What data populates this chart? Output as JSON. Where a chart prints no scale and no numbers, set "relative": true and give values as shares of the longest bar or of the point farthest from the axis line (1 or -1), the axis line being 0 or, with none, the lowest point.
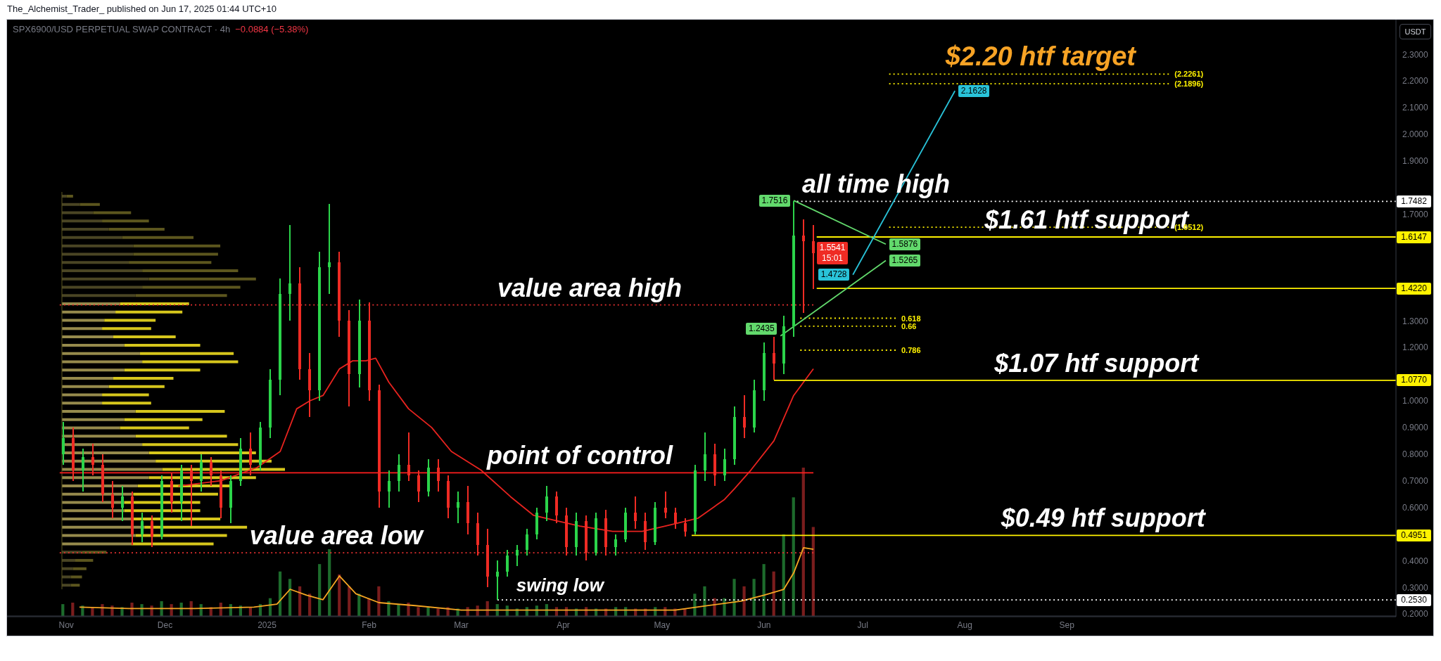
{
  "chart_data": [
    {
      "type": "candlestick",
      "title": "SPX6900/USD PERPETUAL SWAP CONTRACT · 4h",
      "subtitle": "−0.0884 (−5.38%)",
      "ylabel": "USDT",
      "x": [
        "2024-10-31",
        "2024-11-03",
        "2024-11-06",
        "2024-11-09",
        "2024-11-12",
        "2024-11-15",
        "2024-11-18",
        "2024-11-21",
        "2024-11-24",
        "2024-11-27",
        "2024-11-30",
        "2024-12-03",
        "2024-12-06",
        "2024-12-09",
        "2024-12-12",
        "2024-12-15",
        "2024-12-18",
        "2024-12-21",
        "2024-12-24",
        "2024-12-27",
        "2024-12-30",
        "2025-01-02",
        "2025-01-05",
        "2025-01-08",
        "2025-01-11",
        "2025-01-14",
        "2025-01-17",
        "2025-01-20",
        "2025-01-23",
        "2025-01-26",
        "2025-01-29",
        "2025-02-01",
        "2025-02-04",
        "2025-02-07",
        "2025-02-10",
        "2025-02-13",
        "2025-02-16",
        "2025-02-19",
        "2025-02-22",
        "2025-02-25",
        "2025-02-28",
        "2025-03-03",
        "2025-03-06",
        "2025-03-09",
        "2025-03-12",
        "2025-03-15",
        "2025-03-18",
        "2025-03-21",
        "2025-03-24",
        "2025-03-27",
        "2025-03-30",
        "2025-04-02",
        "2025-04-05",
        "2025-04-08",
        "2025-04-11",
        "2025-04-14",
        "2025-04-17",
        "2025-04-20",
        "2025-04-23",
        "2025-04-26",
        "2025-04-29",
        "2025-05-02",
        "2025-05-05",
        "2025-05-08",
        "2025-05-11",
        "2025-05-14",
        "2025-05-17",
        "2025-05-20",
        "2025-05-23",
        "2025-05-26",
        "2025-05-29",
        "2025-06-01",
        "2025-06-04",
        "2025-06-07",
        "2025-06-10",
        "2025-06-13",
        "2025-06-16"
      ],
      "ohlc": [
        [
          0.8,
          0.92,
          0.76,
          0.86
        ],
        [
          0.86,
          0.9,
          0.7,
          0.74
        ],
        [
          0.74,
          0.82,
          0.66,
          0.79
        ],
        [
          0.79,
          0.84,
          0.72,
          0.76
        ],
        [
          0.76,
          0.8,
          0.62,
          0.65
        ],
        [
          0.65,
          0.7,
          0.56,
          0.6
        ],
        [
          0.6,
          0.68,
          0.55,
          0.64
        ],
        [
          0.64,
          0.66,
          0.46,
          0.5
        ],
        [
          0.5,
          0.58,
          0.47,
          0.55
        ],
        [
          0.55,
          0.57,
          0.45,
          0.49
        ],
        [
          0.49,
          0.72,
          0.48,
          0.7
        ],
        [
          0.7,
          0.73,
          0.58,
          0.62
        ],
        [
          0.62,
          0.76,
          0.55,
          0.74
        ],
        [
          0.74,
          0.76,
          0.53,
          0.7
        ],
        [
          0.7,
          0.8,
          0.66,
          0.77
        ],
        [
          0.77,
          0.79,
          0.68,
          0.72
        ],
        [
          0.72,
          0.74,
          0.56,
          0.6
        ],
        [
          0.6,
          0.72,
          0.54,
          0.7
        ],
        [
          0.7,
          0.86,
          0.68,
          0.82
        ],
        [
          0.82,
          0.88,
          0.72,
          0.76
        ],
        [
          0.76,
          0.92,
          0.74,
          0.9
        ],
        [
          0.9,
          1.12,
          0.86,
          1.08
        ],
        [
          1.08,
          1.46,
          1.02,
          1.4
        ],
        [
          1.4,
          1.66,
          1.3,
          1.44
        ],
        [
          1.44,
          1.5,
          1.08,
          1.12
        ],
        [
          1.12,
          1.18,
          0.94,
          1.04
        ],
        [
          1.04,
          1.56,
          1.0,
          1.5
        ],
        [
          1.5,
          1.74,
          1.4,
          1.52
        ],
        [
          1.52,
          1.56,
          1.24,
          1.3
        ],
        [
          1.3,
          1.34,
          0.98,
          1.1
        ],
        [
          1.1,
          1.38,
          1.05,
          1.3
        ],
        [
          1.3,
          1.37,
          1.0,
          1.04
        ],
        [
          1.04,
          1.06,
          0.6,
          0.66
        ],
        [
          0.66,
          0.74,
          0.6,
          0.7
        ],
        [
          0.7,
          0.8,
          0.66,
          0.76
        ],
        [
          0.76,
          0.88,
          0.7,
          0.72
        ],
        [
          0.72,
          0.74,
          0.62,
          0.66
        ],
        [
          0.66,
          0.78,
          0.64,
          0.75
        ],
        [
          0.75,
          0.78,
          0.66,
          0.7
        ],
        [
          0.7,
          0.72,
          0.56,
          0.6
        ],
        [
          0.6,
          0.66,
          0.54,
          0.62
        ],
        [
          0.62,
          0.68,
          0.5,
          0.54
        ],
        [
          0.54,
          0.58,
          0.42,
          0.46
        ],
        [
          0.46,
          0.52,
          0.3,
          0.34
        ],
        [
          0.34,
          0.4,
          0.253,
          0.36
        ],
        [
          0.36,
          0.44,
          0.34,
          0.42
        ],
        [
          0.42,
          0.46,
          0.38,
          0.44
        ],
        [
          0.44,
          0.52,
          0.42,
          0.5
        ],
        [
          0.5,
          0.6,
          0.48,
          0.58
        ],
        [
          0.58,
          0.68,
          0.55,
          0.64
        ],
        [
          0.64,
          0.66,
          0.54,
          0.57
        ],
        [
          0.57,
          0.6,
          0.42,
          0.45
        ],
        [
          0.45,
          0.58,
          0.42,
          0.55
        ],
        [
          0.55,
          0.57,
          0.4,
          0.43
        ],
        [
          0.43,
          0.58,
          0.42,
          0.56
        ],
        [
          0.56,
          0.59,
          0.42,
          0.45
        ],
        [
          0.45,
          0.5,
          0.42,
          0.48
        ],
        [
          0.48,
          0.6,
          0.47,
          0.58
        ],
        [
          0.58,
          0.64,
          0.52,
          0.55
        ],
        [
          0.55,
          0.58,
          0.44,
          0.47
        ],
        [
          0.47,
          0.62,
          0.46,
          0.6
        ],
        [
          0.6,
          0.66,
          0.56,
          0.58
        ],
        [
          0.58,
          0.6,
          0.52,
          0.54
        ],
        [
          0.54,
          0.56,
          0.49,
          0.51
        ],
        [
          0.51,
          0.76,
          0.5,
          0.74
        ],
        [
          0.74,
          0.88,
          0.7,
          0.8
        ],
        [
          0.8,
          0.84,
          0.68,
          0.72
        ],
        [
          0.72,
          0.82,
          0.7,
          0.78
        ],
        [
          0.78,
          0.98,
          0.76,
          0.94
        ],
        [
          0.94,
          1.02,
          0.86,
          0.9
        ],
        [
          0.9,
          1.08,
          0.88,
          1.04
        ],
        [
          1.04,
          1.22,
          1.0,
          1.18
        ],
        [
          1.18,
          1.24,
          1.08,
          1.14
        ],
        [
          1.14,
          1.32,
          1.1,
          1.28
        ],
        [
          1.28,
          1.7482,
          1.24,
          1.62
        ],
        [
          1.62,
          1.68,
          1.33,
          1.6
        ],
        [
          1.6,
          1.66,
          1.42,
          1.5541
        ]
      ],
      "colors": [
        "#2bd44a",
        "#ef2b24",
        "#2bd44a",
        "#ef2b24",
        "#ef2b24",
        "#ef2b24",
        "#2bd44a",
        "#ef2b24",
        "#2bd44a",
        "#ef2b24",
        "#2bd44a",
        "#ef2b24",
        "#2bd44a",
        "#ef2b24",
        "#2bd44a",
        "#ef2b24",
        "#ef2b24",
        "#2bd44a",
        "#2bd44a",
        "#ef2b24",
        "#2bd44a",
        "#2bd44a",
        "#2bd44a",
        "#2bd44a",
        "#ef2b24",
        "#ef2b24",
        "#2bd44a",
        "#2bd44a",
        "#ef2b24",
        "#ef2b24",
        "#2bd44a",
        "#ef2b24",
        "#ef2b24",
        "#2bd44a",
        "#2bd44a",
        "#ef2b24",
        "#ef2b24",
        "#2bd44a",
        "#ef2b24",
        "#ef2b24",
        "#2bd44a",
        "#ef2b24",
        "#ef2b24",
        "#ef2b24",
        "#2bd44a",
        "#2bd44a",
        "#2bd44a",
        "#2bd44a",
        "#2bd44a",
        "#2bd44a",
        "#ef2b24",
        "#ef2b24",
        "#2bd44a",
        "#ef2b24",
        "#2bd44a",
        "#ef2b24",
        "#2bd44a",
        "#2bd44a",
        "#ef2b24",
        "#ef2b24",
        "#2bd44a",
        "#ef2b24",
        "#ef2b24",
        "#ef2b24",
        "#2bd44a",
        "#2bd44a",
        "#ef2b24",
        "#2bd44a",
        "#2bd44a",
        "#ef2b24",
        "#2bd44a",
        "#2bd44a",
        "#ef2b24",
        "#2bd44a",
        "#2bd44a",
        "#ef2b24",
        "#ef2b24"
      ],
      "series": [
        {
          "type": "line",
          "color": "#e8231f",
          "x": [
            "2024-12-05",
            "2024-12-18",
            "2024-12-29",
            "2025-01-05",
            "2025-01-10",
            "2025-01-14",
            "2025-01-18",
            "2025-01-23",
            "2025-01-27",
            "2025-01-31",
            "2025-02-03",
            "2025-02-07",
            "2025-02-13",
            "2025-02-20",
            "2025-02-26",
            "2025-03-07",
            "2025-03-16",
            "2025-03-23",
            "2025-03-30",
            "2025-04-06",
            "2025-04-16",
            "2025-04-25",
            "2025-05-02",
            "2025-05-12",
            "2025-05-20",
            "2025-05-23",
            "2025-05-28",
            "2025-06-04",
            "2025-06-10",
            "2025-06-16"
          ],
          "values": [
            0.68,
            0.7,
            0.75,
            0.81,
            0.97,
            1.0,
            1.02,
            1.12,
            1.15,
            1.15,
            1.16,
            1.07,
            0.97,
            0.9,
            0.81,
            0.74,
            0.64,
            0.57,
            0.55,
            0.53,
            0.51,
            0.51,
            0.53,
            0.56,
            0.63,
            0.67,
            0.74,
            0.85,
            1.02,
            1.12
          ]
        },
        {
          "type": "line",
          "color": "#ffffff",
          "line_style": "dotted",
          "x": [
            "2025-06-11",
            "2025-12-10"
          ],
          "values": [
            1.7482,
            1.7482
          ],
          "value_labels": [
            null,
            "1.7482"
          ]
        },
        {
          "type": "line",
          "color": "#fff200",
          "x": [
            "2025-06-17",
            "2025-12-10"
          ],
          "values": [
            1.6147,
            1.6147
          ],
          "value_labels": [
            null,
            "1.6147"
          ]
        },
        {
          "type": "line",
          "color": "#fff200",
          "x": [
            "2025-06-17",
            "2025-12-10"
          ],
          "values": [
            1.422,
            1.422
          ],
          "value_labels": [
            null,
            "1.4220"
          ]
        },
        {
          "type": "line",
          "color": "#fff200",
          "x": [
            "2025-06-04",
            "2025-12-10"
          ],
          "values": [
            1.077,
            1.077
          ],
          "value_labels": [
            null,
            "1.0770"
          ]
        },
        {
          "type": "line",
          "color": "#fff200",
          "x": [
            "2025-05-10",
            "2025-12-10"
          ],
          "values": [
            0.4951,
            0.4951
          ],
          "value_labels": [
            null,
            "0.4951"
          ]
        },
        {
          "type": "line",
          "color": "#ffffff",
          "line_style": "dotted",
          "x": [
            "2025-03-12",
            "2025-12-10"
          ],
          "values": [
            0.253,
            0.253
          ],
          "value_labels": [
            null,
            "0.2530"
          ]
        },
        {
          "type": "line",
          "color": "#ff1e1e",
          "x": [
            "2024-10-30",
            "2025-06-16"
          ],
          "values": [
            0.73,
            0.73
          ]
        },
        {
          "type": "line",
          "color": "#e53030",
          "line_style": "dotted",
          "x": [
            "2024-10-30",
            "2025-06-16"
          ],
          "values": [
            1.36,
            1.36
          ]
        },
        {
          "type": "line",
          "color": "#e53030",
          "line_style": "dotted",
          "x": [
            "2024-10-30",
            "2025-06-16"
          ],
          "values": [
            0.43,
            0.43
          ]
        },
        {
          "type": "line",
          "name": "0.618",
          "color": "#fff200",
          "line_style": "dotted",
          "x": [
            "2025-06-12",
            "2025-07-11"
          ],
          "values": [
            1.31,
            1.31
          ]
        },
        {
          "type": "line",
          "name": "0.66",
          "color": "#fff200",
          "line_style": "dotted",
          "x": [
            "2025-06-12",
            "2025-07-11"
          ],
          "values": [
            1.28,
            1.28
          ]
        },
        {
          "type": "line",
          "name": "0.786",
          "color": "#fff200",
          "line_style": "dotted",
          "x": [
            "2025-06-12",
            "2025-07-11"
          ],
          "values": [
            1.19,
            1.19
          ]
        },
        {
          "type": "line",
          "color": "#fff200",
          "line_style": "dotted",
          "x": [
            "2025-07-09",
            "2025-10-02"
          ],
          "values": [
            2.2261,
            2.2261
          ],
          "value_labels": [
            null,
            "(2.2261)"
          ]
        },
        {
          "type": "line",
          "color": "#fff200",
          "line_style": "dotted",
          "x": [
            "2025-07-09",
            "2025-10-02"
          ],
          "values": [
            2.1896,
            2.1896
          ],
          "value_labels": [
            null,
            "(2.1896)"
          ]
        },
        {
          "type": "line",
          "color": "#fff200",
          "line_style": "dotted",
          "x": [
            "2025-07-09",
            "2025-10-02"
          ],
          "values": [
            1.6512,
            1.6512
          ],
          "value_labels": [
            null,
            "(1.6512)"
          ]
        },
        {
          "type": "line",
          "color": "#62d96c",
          "x": [
            "2025-06-10",
            "2025-07-08"
          ],
          "values": [
            1.7516,
            1.5876
          ],
          "value_labels": [
            "1.7516",
            "1.5876"
          ]
        },
        {
          "type": "line",
          "color": "#62d96c",
          "x": [
            "2025-06-06",
            "2025-07-08"
          ],
          "values": [
            1.2435,
            1.5265
          ],
          "value_labels": [
            "1.2435",
            "1.5265"
          ]
        },
        {
          "type": "line",
          "color": "#29c3d9",
          "x": [
            "2025-06-28",
            "2025-07-29"
          ],
          "values": [
            1.4728,
            2.1628
          ],
          "value_labels": [
            "1.4728",
            "2.1628"
          ]
        }
      ],
      "annotations": [
        "The_Alchemist_Trader_ published on Jun 17, 2025 01:44 UTC+10",
        {
          "text": "$2.20 htf target",
          "x": "2025-08-24",
          "y": 2.2261
        },
        {
          "text": "all time high",
          "x": "2025-07-05",
          "y": 1.7482
        },
        {
          "text": "$1.61 htf support",
          "x": "2025-09-07",
          "y": 1.6147
        },
        {
          "text": "value area high",
          "x": "2025-04-09",
          "y": 1.36
        },
        {
          "text": "$1.07 htf support",
          "x": "2025-09-10",
          "y": 1.077
        },
        {
          "text": "point of control",
          "x": "2025-04-06",
          "y": 0.73
        },
        {
          "text": "$0.49 htf support",
          "x": "2025-09-12",
          "y": 0.4951
        },
        {
          "text": "value area low",
          "x": "2025-01-22",
          "y": 0.43
        },
        {
          "text": "swing low",
          "x": "2025-03-31",
          "y": 0.253
        },
        {
          "text": "1.5541\n15:01",
          "x": "2025-06-16",
          "y": 1.5541
        }
      ],
      "xlim": [
        "2024-10-14",
        "2025-12-10"
      ],
      "xticks": [
        {
          "value": "2024-11-01",
          "label": "Nov"
        },
        {
          "value": "2024-12-01",
          "label": "Dec"
        },
        {
          "value": "2025-01-01",
          "label": "2025"
        },
        {
          "value": "2025-02-01",
          "label": "Feb"
        },
        {
          "value": "2025-03-01",
          "label": "Mar"
        },
        {
          "value": "2025-04-01",
          "label": "Apr"
        },
        {
          "value": "2025-05-01",
          "label": "May"
        },
        {
          "value": "2025-06-01",
          "label": "Jun"
        },
        {
          "value": "2025-07-01",
          "label": "Jul"
        },
        {
          "value": "2025-08-01",
          "label": "Aug"
        },
        {
          "value": "2025-09-01",
          "label": "Sep"
        }
      ],
      "ylim": [
        0.19,
        2.43
      ],
      "yticks": [
        {
          "value": 0.2,
          "label": "0.2000"
        },
        {
          "value": 0.3,
          "label": "0.3000"
        },
        {
          "value": 0.4,
          "label": "0.4000"
        },
        {
          "value": 0.6,
          "label": "0.6000"
        },
        {
          "value": 0.7,
          "label": "0.7000"
        },
        {
          "value": 0.8,
          "label": "0.8000"
        },
        {
          "value": 0.9,
          "label": "0.9000"
        },
        {
          "value": 1.0,
          "label": "1.0000"
        },
        {
          "value": 1.2,
          "label": "1.2000"
        },
        {
          "value": 1.3,
          "label": "1.3000"
        },
        {
          "value": 1.7,
          "label": "1.7000"
        },
        {
          "value": 1.9,
          "label": "1.9000"
        },
        {
          "value": 2.0,
          "label": "2.0000"
        },
        {
          "value": 2.1,
          "label": "2.1000"
        },
        {
          "value": 2.2,
          "label": "2.2000"
        },
        {
          "value": 2.3,
          "label": "2.3000"
        }
      ]
    },
    {
      "type": "bar",
      "relative": true,
      "tick_labels": false,
      "x": [
        "2024-10-31",
        "2024-11-03",
        "2024-11-06",
        "2024-11-09",
        "2024-11-12",
        "2024-11-15",
        "2024-11-18",
        "2024-11-21",
        "2024-11-24",
        "2024-11-27",
        "2024-11-30",
        "2024-12-03",
        "2024-12-06",
        "2024-12-09",
        "2024-12-12",
        "2024-12-15",
        "2024-12-18",
        "2024-12-21",
        "2024-12-24",
        "2024-12-27",
        "2024-12-30",
        "2025-01-02",
        "2025-01-05",
        "2025-01-08",
        "2025-01-11",
        "2025-01-14",
        "2025-01-17",
        "2025-01-20",
        "2025-01-23",
        "2025-01-26",
        "2025-01-29",
        "2025-02-01",
        "2025-02-04",
        "2025-02-07",
        "2025-02-10",
        "2025-02-13",
        "2025-02-16",
        "2025-02-19",
        "2025-02-22",
        "2025-02-25",
        "2025-02-28",
        "2025-03-03",
        "2025-03-06",
        "2025-03-09",
        "2025-03-12",
        "2025-03-15",
        "2025-03-18",
        "2025-03-21",
        "2025-03-24",
        "2025-03-27",
        "2025-03-30",
        "2025-04-02",
        "2025-04-05",
        "2025-04-08",
        "2025-04-11",
        "2025-04-14",
        "2025-04-17",
        "2025-04-20",
        "2025-04-23",
        "2025-04-26",
        "2025-04-29",
        "2025-05-02",
        "2025-05-05",
        "2025-05-08",
        "2025-05-11",
        "2025-05-14",
        "2025-05-17",
        "2025-05-20",
        "2025-05-23",
        "2025-05-26",
        "2025-05-29",
        "2025-06-01",
        "2025-06-04",
        "2025-06-07",
        "2025-06-10",
        "2025-06-13",
        "2025-06-16"
      ],
      "xlim": [
        "2024-10-14",
        "2025-12-10"
      ],
      "series": [
        {
          "type": "bar",
          "values": [
            0.08,
            0.09,
            0.07,
            0.06,
            0.08,
            0.07,
            0.06,
            0.09,
            0.08,
            0.07,
            0.1,
            0.08,
            0.09,
            0.1,
            0.08,
            0.06,
            0.09,
            0.08,
            0.07,
            0.06,
            0.08,
            0.12,
            0.3,
            0.25,
            0.2,
            0.15,
            0.35,
            0.45,
            0.28,
            0.2,
            0.15,
            0.12,
            0.2,
            0.1,
            0.08,
            0.09,
            0.06,
            0.06,
            0.05,
            0.06,
            0.05,
            0.06,
            0.07,
            0.1,
            0.08,
            0.07,
            0.05,
            0.06,
            0.07,
            0.08,
            0.06,
            0.06,
            0.05,
            0.06,
            0.05,
            0.05,
            0.06,
            0.06,
            0.05,
            0.05,
            0.06,
            0.06,
            0.05,
            0.05,
            0.15,
            0.2,
            0.12,
            0.12,
            0.25,
            0.2,
            0.25,
            0.35,
            0.3,
            0.55,
            0.8,
            1.0,
            0.6
          ],
          "colors": [
            "#1d6b2c",
            "#7a1d1d",
            "#1d6b2c",
            "#7a1d1d",
            "#7a1d1d",
            "#7a1d1d",
            "#1d6b2c",
            "#7a1d1d",
            "#1d6b2c",
            "#7a1d1d",
            "#1d6b2c",
            "#7a1d1d",
            "#1d6b2c",
            "#7a1d1d",
            "#1d6b2c",
            "#7a1d1d",
            "#7a1d1d",
            "#1d6b2c",
            "#1d6b2c",
            "#7a1d1d",
            "#1d6b2c",
            "#1d6b2c",
            "#1d6b2c",
            "#1d6b2c",
            "#7a1d1d",
            "#7a1d1d",
            "#1d6b2c",
            "#1d6b2c",
            "#7a1d1d",
            "#7a1d1d",
            "#1d6b2c",
            "#7a1d1d",
            "#7a1d1d",
            "#1d6b2c",
            "#1d6b2c",
            "#7a1d1d",
            "#7a1d1d",
            "#1d6b2c",
            "#7a1d1d",
            "#7a1d1d",
            "#1d6b2c",
            "#7a1d1d",
            "#7a1d1d",
            "#7a1d1d",
            "#1d6b2c",
            "#1d6b2c",
            "#1d6b2c",
            "#1d6b2c",
            "#1d6b2c",
            "#1d6b2c",
            "#7a1d1d",
            "#7a1d1d",
            "#1d6b2c",
            "#7a1d1d",
            "#1d6b2c",
            "#7a1d1d",
            "#1d6b2c",
            "#1d6b2c",
            "#7a1d1d",
            "#7a1d1d",
            "#1d6b2c",
            "#7a1d1d",
            "#7a1d1d",
            "#7a1d1d",
            "#1d6b2c",
            "#1d6b2c",
            "#7a1d1d",
            "#1d6b2c",
            "#1d6b2c",
            "#7a1d1d",
            "#1d6b2c",
            "#1d6b2c",
            "#7a1d1d",
            "#1d6b2c",
            "#1d6b2c",
            "#7a1d1d",
            "#7a1d1d"
          ]
        },
        {
          "type": "line",
          "color": "#f5a623",
          "x": [
            "2024-11-05",
            "2024-11-20",
            "2024-12-10",
            "2024-12-28",
            "2025-01-04",
            "2025-01-08",
            "2025-01-13",
            "2025-01-18",
            "2025-01-23",
            "2025-01-28",
            "2025-02-04",
            "2025-02-15",
            "2025-03-01",
            "2025-03-15",
            "2025-04-01",
            "2025-04-20",
            "2025-05-05",
            "2025-05-15",
            "2025-05-25",
            "2025-06-01",
            "2025-06-07",
            "2025-06-10",
            "2025-06-13",
            "2025-06-16"
          ],
          "values": [
            0.06,
            0.05,
            0.05,
            0.06,
            0.08,
            0.18,
            0.14,
            0.11,
            0.27,
            0.15,
            0.09,
            0.07,
            0.04,
            0.04,
            0.04,
            0.04,
            0.04,
            0.07,
            0.1,
            0.14,
            0.18,
            0.29,
            0.46,
            0.45
          ]
        }
      ]
    },
    {
      "type": "bar",
      "orientation": "horizontal",
      "stacked": true,
      "relative": true,
      "tick_labels": false,
      "categories": [
        null,
        null,
        null,
        null,
        null,
        null,
        null,
        null,
        null,
        null,
        null,
        null,
        null,
        null,
        null,
        null,
        null,
        null,
        null,
        null,
        null,
        null,
        null,
        null,
        null,
        null,
        null,
        null,
        null,
        null,
        null,
        null,
        null,
        null,
        null,
        null,
        null,
        null,
        null,
        null,
        null,
        null,
        null,
        null,
        null,
        null,
        null,
        null
      ],
      "series": [
        {
          "values": [
            0.02,
            0.08,
            0.14,
            0.18,
            0.21,
            0.27,
            0.32,
            0.32,
            0.3,
            0.36,
            0.39,
            0.36,
            0.33,
            0.26,
            0.24,
            0.19,
            0.18,
            0.23,
            0.28,
            0.35,
            0.36,
            0.28,
            0.23,
            0.21,
            0.18,
            0.18,
            0.33,
            0.28,
            0.26,
            0.33,
            0.36,
            0.39,
            0.42,
            0.45,
            0.39,
            0.34,
            0.32,
            0.28,
            0.28,
            0.32,
            0.37,
            0.33,
            0.31,
            0.09,
            0.06,
            0.05,
            0.04,
            0.04
          ],
          "colors": [
            "#4a4524",
            "#4a4524",
            "#4a4524",
            "#4a4524",
            "#4a4524",
            "#4a4524",
            "#4a4524",
            "#4a4524",
            "#4a4524",
            "#4a4524",
            "#4a4524",
            "#4a4524",
            "#4a4524",
            "#968a4c",
            "#968a4c",
            "#968a4c",
            "#968a4c",
            "#968a4c",
            "#968a4c",
            "#968a4c",
            "#968a4c",
            "#968a4c",
            "#968a4c",
            "#968a4c",
            "#968a4c",
            "#968a4c",
            "#968a4c",
            "#968a4c",
            "#968a4c",
            "#968a4c",
            "#968a4c",
            "#968a4c",
            "#968a4c",
            "#968a4c",
            "#968a4c",
            "#968a4c",
            "#968a4c",
            "#968a4c",
            "#968a4c",
            "#968a4c",
            "#968a4c",
            "#968a4c",
            "#968a4c",
            "#4a4524",
            "#4a4524",
            "#4a4524",
            "#4a4524",
            "#4a4524"
          ]
        },
        {
          "values": [
            0.03,
            0.09,
            0.17,
            0.21,
            0.25,
            0.32,
            0.39,
            0.38,
            0.37,
            0.43,
            0.48,
            0.44,
            0.41,
            0.31,
            0.3,
            0.23,
            0.22,
            0.28,
            0.34,
            0.42,
            0.43,
            0.34,
            0.27,
            0.25,
            0.21,
            0.22,
            0.4,
            0.35,
            0.31,
            0.41,
            0.43,
            0.48,
            0.52,
            0.55,
            0.48,
            0.42,
            0.38,
            0.34,
            0.34,
            0.39,
            0.46,
            0.41,
            0.37,
            0.11,
            0.08,
            0.06,
            0.05,
            0.04
          ],
          "colors": [
            "#5c561e",
            "#5c561e",
            "#5c561e",
            "#5c561e",
            "#5c561e",
            "#5c561e",
            "#5c561e",
            "#5c561e",
            "#5c561e",
            "#5c561e",
            "#5c561e",
            "#5c561e",
            "#5c561e",
            "#d6c61c",
            "#d6c61c",
            "#d6c61c",
            "#d6c61c",
            "#d6c61c",
            "#d6c61c",
            "#d6c61c",
            "#d6c61c",
            "#d6c61c",
            "#d6c61c",
            "#d6c61c",
            "#d6c61c",
            "#d6c61c",
            "#d6c61c",
            "#d6c61c",
            "#d6c61c",
            "#d6c61c",
            "#d6c61c",
            "#d6c61c",
            "#d6c61c",
            "#d6c61c",
            "#d6c61c",
            "#d6c61c",
            "#d6c61c",
            "#d6c61c",
            "#d6c61c",
            "#d6c61c",
            "#d6c61c",
            "#d6c61c",
            "#d6c61c",
            "#5c561e",
            "#5c561e",
            "#5c561e",
            "#5c561e",
            "#5c561e"
          ]
        }
      ]
    }
  ]
}
